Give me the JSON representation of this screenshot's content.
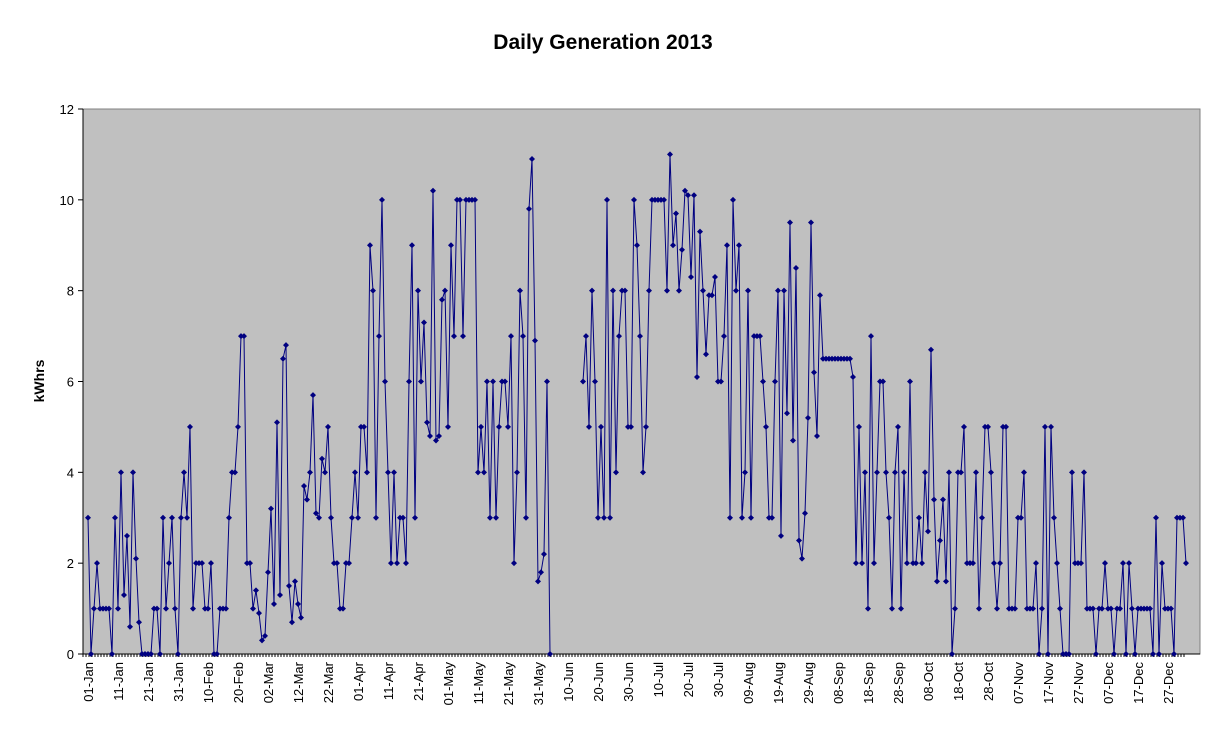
{
  "chart_data": {
    "type": "line",
    "title": "Daily Generation 2013",
    "ylabel": "kWhrs",
    "xlabel": "",
    "ylim": [
      0,
      12
    ],
    "y_ticks": [
      0,
      2,
      4,
      6,
      8,
      10,
      12
    ],
    "x_tick_labels": [
      "01-Jan",
      "11-Jan",
      "21-Jan",
      "31-Jan",
      "10-Feb",
      "20-Feb",
      "02-Mar",
      "12-Mar",
      "22-Mar",
      "01-Apr",
      "11-Apr",
      "21-Apr",
      "01-May",
      "11-May",
      "21-May",
      "31-May",
      "10-Jun",
      "20-Jun",
      "30-Jun",
      "10-Jul",
      "20-Jul",
      "30-Jul",
      "09-Aug",
      "19-Aug",
      "29-Aug",
      "08-Sep",
      "18-Sep",
      "28-Sep",
      "08-Oct",
      "18-Oct",
      "28-Oct",
      "07-Nov",
      "17-Nov",
      "27-Nov",
      "07-Dec",
      "17-Dec",
      "27-Dec"
    ],
    "x_tick_every_days": 10,
    "grid": false,
    "legend": "none",
    "colors": {
      "plot_background": "#c0c0c0",
      "series": "#000080"
    },
    "series": [
      {
        "values": [
          3,
          0,
          1,
          2,
          1,
          1,
          1,
          1,
          0,
          3,
          1,
          4,
          1.3,
          2.6,
          0.6,
          4,
          2.1,
          0.7,
          0,
          0,
          0,
          0,
          1,
          1,
          0,
          3,
          1,
          2,
          3,
          1,
          0,
          3,
          4,
          3,
          5,
          1,
          2,
          2,
          2,
          1,
          1,
          2,
          0,
          0,
          1,
          1,
          1,
          3,
          4,
          4,
          5,
          7,
          7,
          2,
          2,
          1,
          1.4,
          0.9,
          0.3,
          0.4,
          1.8,
          3.2,
          1.1,
          5.1,
          1.3,
          6.5,
          6.8,
          1.5,
          0.7,
          1.6,
          1.1,
          0.8,
          3.7,
          3.4,
          4,
          5.7,
          3.1,
          3,
          4.3,
          4,
          5,
          3,
          2,
          2,
          1,
          1,
          2,
          2,
          3,
          4,
          3,
          5,
          5,
          4,
          9,
          8,
          3,
          7,
          10,
          6,
          4,
          2,
          4,
          2,
          3,
          3,
          2,
          6,
          9,
          3,
          8,
          6,
          7.3,
          5.1,
          4.8,
          10.2,
          4.7,
          4.8,
          7.8,
          8,
          5,
          9,
          7,
          10,
          10,
          7,
          10,
          10,
          10,
          10,
          4,
          5,
          4,
          6,
          3,
          6,
          3,
          5,
          6,
          6,
          5,
          7,
          2,
          4,
          8,
          7,
          3,
          9.8,
          10.9,
          6.9,
          1.6,
          1.8,
          2.2,
          6,
          0,
          null,
          null,
          null,
          null,
          null,
          null,
          null,
          null,
          null,
          null,
          6,
          7,
          5,
          8,
          6,
          3,
          5,
          3,
          10,
          3,
          8,
          4,
          7,
          8,
          8,
          5,
          5,
          10,
          9,
          7,
          4,
          5,
          8,
          10,
          10,
          10,
          10,
          10,
          8,
          11,
          9,
          9.7,
          8,
          8.9,
          10.2,
          10.1,
          8.3,
          10.1,
          6.1,
          9.3,
          8,
          6.6,
          7.9,
          7.9,
          8.3,
          6,
          6,
          7,
          9,
          3,
          10,
          8,
          9,
          3,
          4,
          8,
          3,
          7,
          7,
          7,
          6,
          5,
          3,
          3,
          6,
          8,
          2.6,
          8,
          5.3,
          9.5,
          4.7,
          8.5,
          2.5,
          2.1,
          3.1,
          5.2,
          9.5,
          6.2,
          4.8,
          7.9,
          6.5,
          6.5,
          6.5,
          6.5,
          6.5,
          6.5,
          6.5,
          6.5,
          6.5,
          6.5,
          6.1,
          2,
          5,
          2,
          4,
          1,
          7,
          2,
          4,
          6,
          6,
          4,
          3,
          1,
          4,
          5,
          1,
          4,
          2,
          6,
          2,
          2,
          3,
          2,
          4,
          2.7,
          6.7,
          3.4,
          1.6,
          2.5,
          3.4,
          1.6,
          4,
          0,
          1,
          4,
          4,
          5,
          2,
          2,
          2,
          4,
          1,
          3,
          5,
          5,
          4,
          2,
          1,
          2,
          5,
          5,
          1,
          1,
          1,
          3,
          3,
          4,
          1,
          1,
          1,
          2,
          0,
          1,
          5,
          0,
          5,
          3,
          2,
          1,
          0,
          0,
          0,
          4,
          2,
          2,
          2,
          4,
          1,
          1,
          1,
          0,
          1,
          1,
          2,
          1,
          1,
          0,
          1,
          1,
          2,
          0,
          2,
          1,
          0,
          1,
          1,
          1,
          1,
          1,
          0,
          3,
          0,
          2,
          1,
          1,
          1,
          0,
          3,
          3,
          3,
          2
        ]
      }
    ]
  }
}
